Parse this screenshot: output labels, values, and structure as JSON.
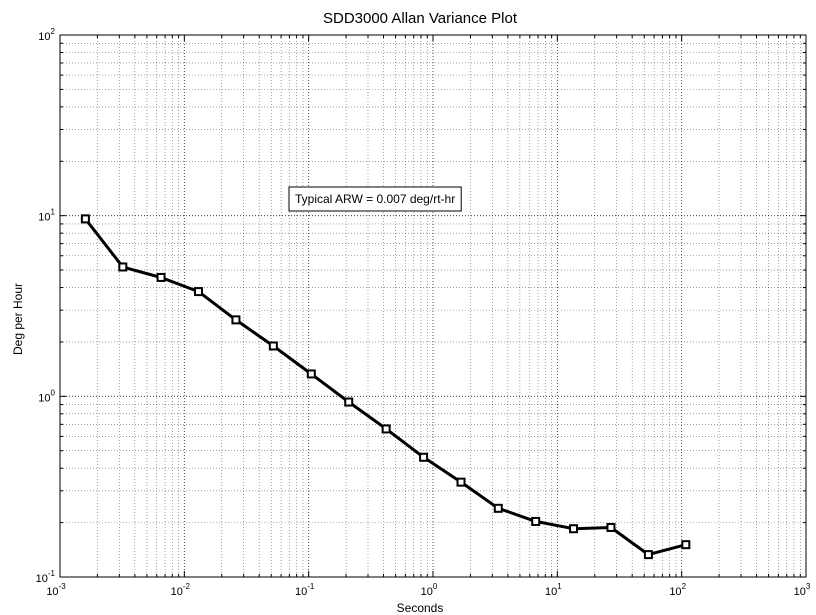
{
  "chart_data": {
    "type": "line",
    "title": "SDD3000 Allan Variance Plot",
    "xlabel": "Seconds",
    "ylabel": "Deg per Hour",
    "xscale": "log",
    "yscale": "log",
    "xlim": [
      0.001,
      1000
    ],
    "ylim": [
      0.1,
      100
    ],
    "grid": true,
    "x_ticks": [
      {
        "base": "10",
        "exp": "-3",
        "value": 0.001
      },
      {
        "base": "10",
        "exp": "-2",
        "value": 0.01
      },
      {
        "base": "10",
        "exp": "-1",
        "value": 0.1
      },
      {
        "base": "10",
        "exp": "0",
        "value": 1
      },
      {
        "base": "10",
        "exp": "1",
        "value": 10
      },
      {
        "base": "10",
        "exp": "2",
        "value": 100
      },
      {
        "base": "10",
        "exp": "3",
        "value": 1000
      }
    ],
    "y_ticks": [
      {
        "base": "10",
        "exp": "-1",
        "value": 0.1
      },
      {
        "base": "10",
        "exp": "0",
        "value": 1
      },
      {
        "base": "10",
        "exp": "1",
        "value": 10
      },
      {
        "base": "10",
        "exp": "2",
        "value": 100
      }
    ],
    "annotation": "Typical ARW = 0.007 deg/rt-hr",
    "line_color": "#000000",
    "series": [
      {
        "x": [
          0.0016,
          0.0032,
          0.0065,
          0.013,
          0.026,
          0.052,
          0.105,
          0.21,
          0.42,
          0.84,
          1.68,
          3.35,
          6.7,
          13.5,
          27,
          54,
          108
        ],
        "y": [
          9.6,
          5.2,
          4.55,
          3.8,
          2.65,
          1.9,
          1.33,
          0.93,
          0.66,
          0.46,
          0.335,
          0.24,
          0.203,
          0.185,
          0.188,
          0.133,
          0.151
        ]
      }
    ]
  }
}
